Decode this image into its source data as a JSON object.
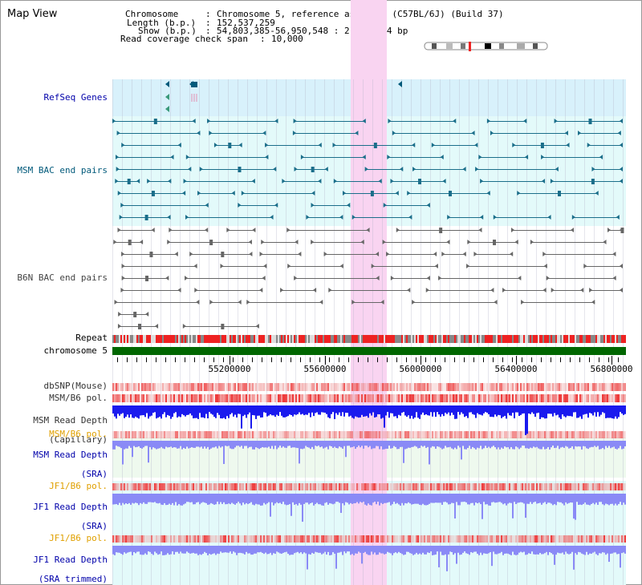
{
  "title": "Map View",
  "info": {
    "chromosome_key": "Chromosome",
    "chromosome_value": "Chromosome 5, reference assembly (C57BL/6J) (Build 37)",
    "length_key": "Length (b.p.)",
    "length_value": "152,537,259",
    "show_key": "Show (b.p.)",
    "show_value": "54,803,385-56,950,548 : 2,147,164 bp",
    "span_key": "Read coverage check span",
    "span_value": "10,000"
  },
  "tracks": {
    "refseq": {
      "label": "RefSeq Genes",
      "color": "#0000aa"
    },
    "msm_bac": {
      "label": "MSM BAC end pairs",
      "color": "#00597a"
    },
    "b6n_bac": {
      "label": "B6N BAC end pairs",
      "color": "#444444"
    },
    "repeat": {
      "label": "Repeat"
    },
    "chrom": {
      "label": "chromosome 5"
    },
    "dbsnp": {
      "label": "dbSNP(Mouse)"
    },
    "msm_b6_pol": {
      "label": "MSM/B6 pol."
    },
    "msm_depth_cap": {
      "line1": "MSM Read Depth",
      "line2": "(Capillary)"
    },
    "msm_b6_pol2": {
      "label": "MSM/B6 pol."
    },
    "msm_depth_sra": {
      "line1": "MSM Read Depth",
      "line2": "(SRA)"
    },
    "jf1_pol": {
      "label": "JF1/B6 pol."
    },
    "jf1_depth_sra": {
      "line1": "JF1 Read Depth",
      "line2": "(SRA)"
    },
    "jf1_pol2": {
      "label": "JF1/B6 pol."
    },
    "jf1_depth_trim": {
      "line1": "JF1 Read Depth",
      "line2": "(SRA trimmed)"
    }
  },
  "axis": {
    "ticks": [
      "55200000",
      "55600000",
      "56000000",
      "56400000",
      "56800000"
    ]
  },
  "colors": {
    "highlight": "#f9d4f1",
    "refseq_bg": "#d8f1fb",
    "msm_bg": "#e3fafa",
    "polymorph": "#ee4444",
    "depth_dark": "#1a1aee",
    "depth_light": "#8a8af6",
    "chrom_green": "#006600"
  }
}
